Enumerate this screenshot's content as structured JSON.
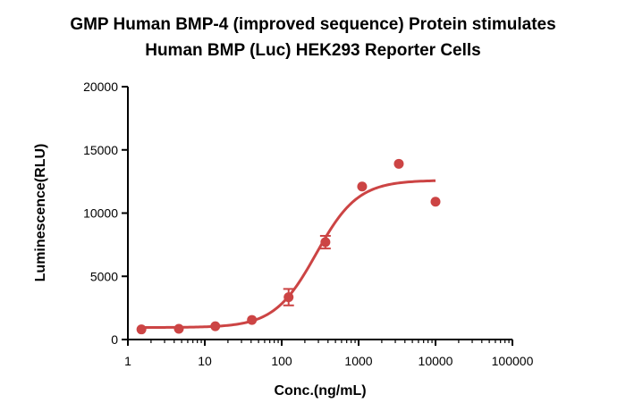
{
  "chart_data": {
    "type": "scatter",
    "title": [
      "GMP Human BMP-4 (improved sequence) Protein stimulates",
      "Human BMP (Luc) HEK293 Reporter Cells"
    ],
    "xlabel": "Conc.(ng/mL)",
    "ylabel": "Luminescence(RLU)",
    "x_scale": "log",
    "xlim": [
      1,
      100000
    ],
    "ylim": [
      0,
      20000
    ],
    "x_ticks": [
      1,
      10,
      100,
      1000,
      10000,
      100000
    ],
    "x_tick_labels": [
      "1",
      "10",
      "100",
      "1000",
      "10000",
      "100000"
    ],
    "y_ticks": [
      0,
      5000,
      10000,
      15000,
      20000
    ],
    "y_tick_labels": [
      "0",
      "5000",
      "10000",
      "15000",
      "20000"
    ],
    "grid": false,
    "legend": "none",
    "colors": {
      "series": "#cc4444",
      "axis": "#000000"
    },
    "series": [
      {
        "points": [
          {
            "x": 1.5,
            "y": 800
          },
          {
            "x": 4.6,
            "y": 850
          },
          {
            "x": 13.7,
            "y": 1050
          },
          {
            "x": 41,
            "y": 1550
          },
          {
            "x": 123,
            "y": 3350,
            "err": 650
          },
          {
            "x": 370,
            "y": 7700,
            "err": 500
          },
          {
            "x": 1111,
            "y": 12100
          },
          {
            "x": 3333,
            "y": 13900
          },
          {
            "x": 10000,
            "y": 10900
          }
        ],
        "fit": {
          "model": "4PL",
          "bottom": 950,
          "top": 12600,
          "ec50": 280,
          "hill": 1.6,
          "x_range": [
            1.5,
            10000
          ]
        }
      }
    ]
  }
}
